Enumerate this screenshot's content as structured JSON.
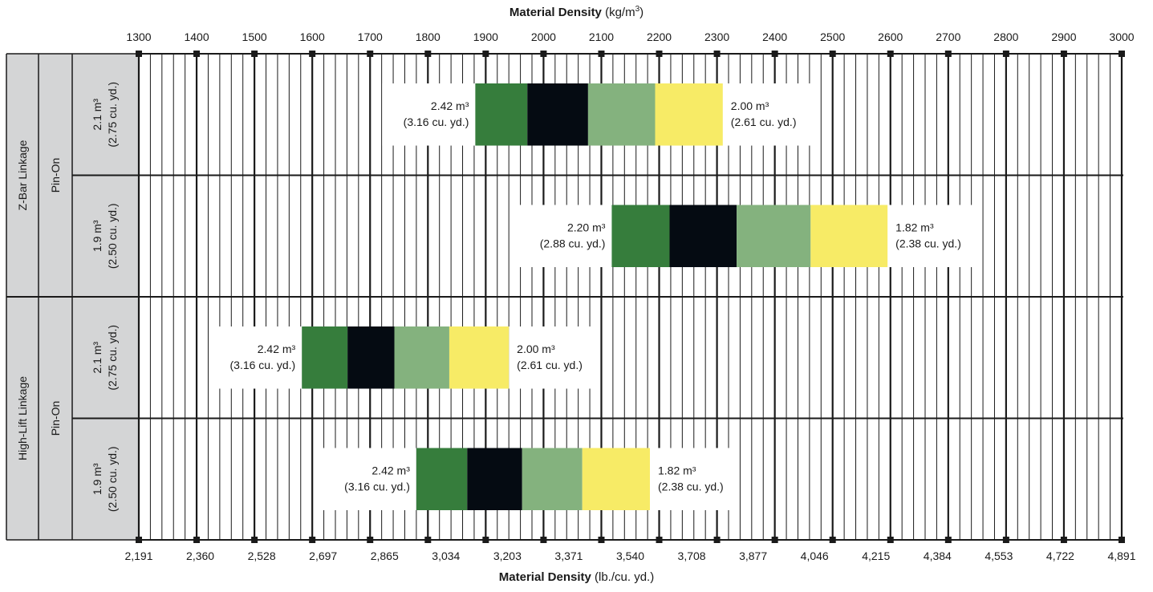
{
  "chart_data": {
    "type": "bar",
    "top_axis": {
      "title_bold": "Material Density",
      "title_unit_prefix": "(kg/m",
      "title_unit_sup": "3",
      "title_unit_suffix": ")",
      "ticks": [
        "1300",
        "1400",
        "1500",
        "1600",
        "1700",
        "1800",
        "1900",
        "2000",
        "2100",
        "2200",
        "2300",
        "2400",
        "2500",
        "2600",
        "2700",
        "2800",
        "2900",
        "3000"
      ],
      "xlim": [
        1300,
        3000
      ]
    },
    "bottom_axis": {
      "title_bold": "Material Density",
      "title_unit": "(lb./cu. yd.)",
      "ticks": [
        "2,191",
        "2,360",
        "2,528",
        "2,697",
        "2,865",
        "3,034",
        "3,203",
        "3,371",
        "3,540",
        "3,708",
        "3,877",
        "4,046",
        "4,215",
        "4,384",
        "4,553",
        "4,722",
        "4,891"
      ]
    },
    "grid": true,
    "colors": {
      "seg1": "#367d3c",
      "seg2": "#050b12",
      "seg3": "#84b27e",
      "seg4": "#f7eb66",
      "grid": "#1a1a1a",
      "label_panel": "#d4d5d6"
    },
    "groups": [
      {
        "linkage": "Z-Bar Linkage",
        "coupling": "Pin-On"
      },
      {
        "linkage": "High-Lift Linkage",
        "coupling": "Pin-On"
      }
    ],
    "rows": [
      {
        "bucket_line1": "2.1 m³",
        "bucket_line2": "(2.75 cu. yd.)",
        "segments": [
          1882,
          1972,
          2077,
          2193,
          2310
        ],
        "left_label_1": "2.42 m³",
        "left_label_2": "(3.16 cu. yd.)",
        "right_label_1": "2.00 m³",
        "right_label_2": "(2.61 cu. yd.)"
      },
      {
        "bucket_line1": "1.9 m³",
        "bucket_line2": "(2.50 cu. yd.)",
        "segments": [
          2118,
          2218,
          2334,
          2462,
          2595
        ],
        "left_label_1": "2.20 m³",
        "left_label_2": "(2.88 cu. yd.)",
        "right_label_1": "1.82 m³",
        "right_label_2": "(2.38 cu. yd.)"
      },
      {
        "bucket_line1": "2.1 m³",
        "bucket_line2": "(2.75 cu. yd.)",
        "segments": [
          1582,
          1661,
          1742,
          1837,
          1940
        ],
        "left_label_1": "2.42 m³",
        "left_label_2": "(3.16 cu. yd.)",
        "right_label_1": "2.00 m³",
        "right_label_2": "(2.61 cu. yd.)"
      },
      {
        "bucket_line1": "1.9 m³",
        "bucket_line2": "(2.50 cu. yd.)",
        "segments": [
          1780,
          1868,
          1963,
          2067,
          2184
        ],
        "left_label_1": "2.42 m³",
        "left_label_2": "(3.16 cu. yd.)",
        "right_label_1": "1.82 m³",
        "right_label_2": "(2.38 cu. yd.)"
      }
    ]
  }
}
